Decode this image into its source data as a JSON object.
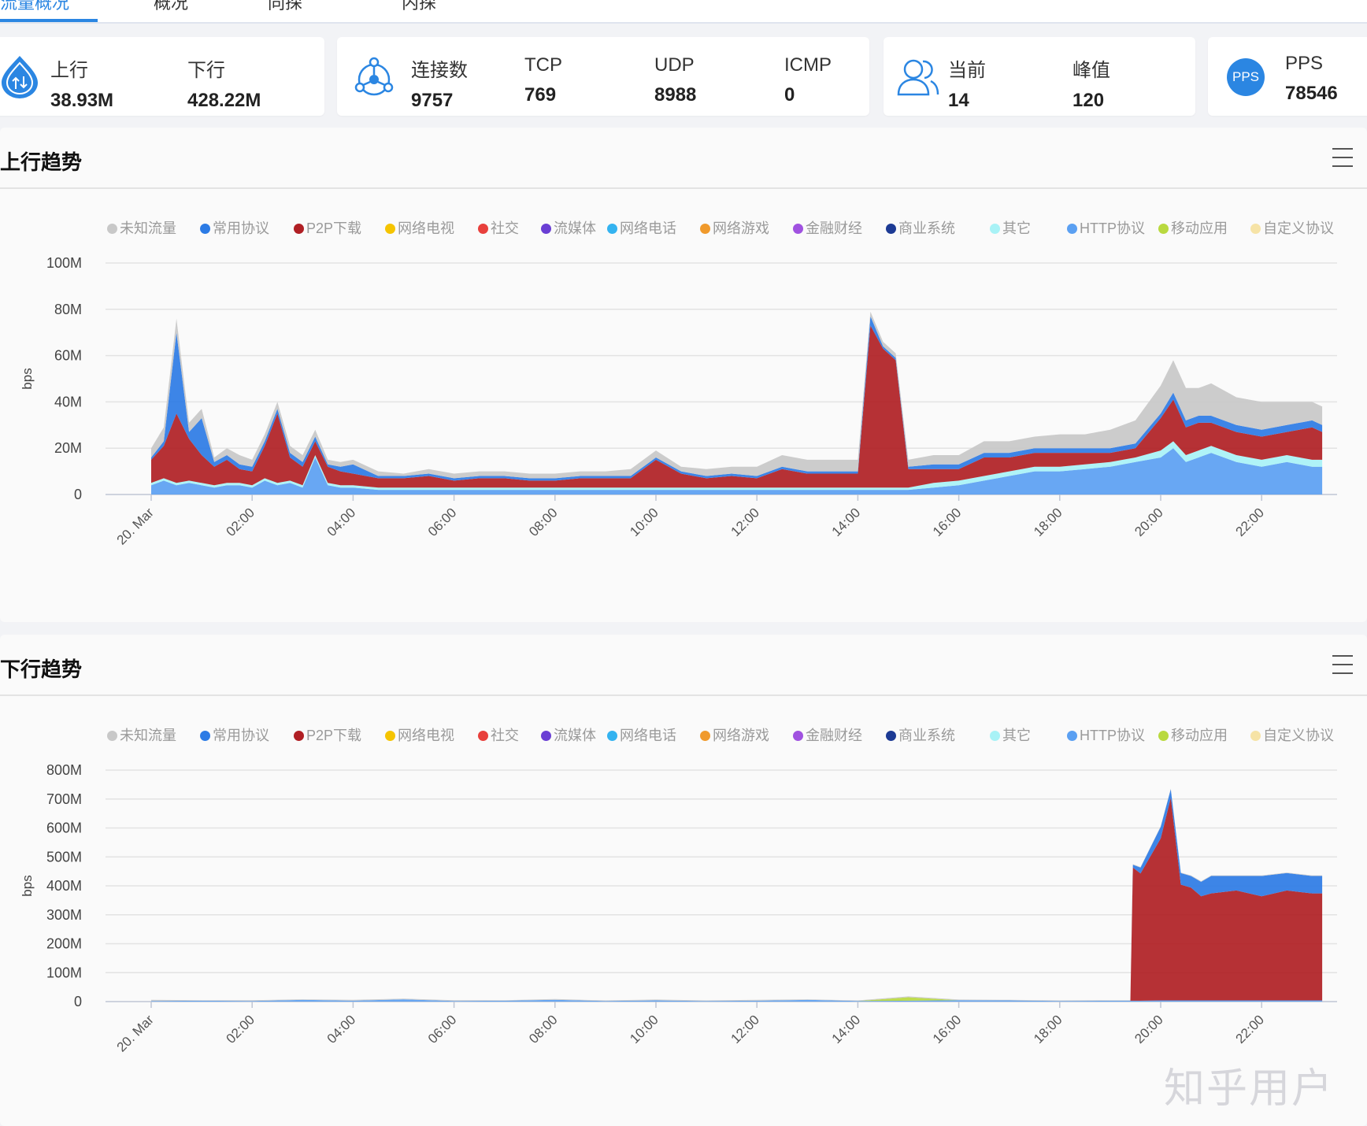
{
  "tabs": [
    {
      "label": "流量概况",
      "active": true
    },
    {
      "label": "概况",
      "active": false
    },
    {
      "label": "同探",
      "active": false
    },
    {
      "label": "内探",
      "active": false
    }
  ],
  "summary": {
    "updown": {
      "icon": "upload-download-icon",
      "up_label": "上行",
      "up_value": "38.93M",
      "down_label": "下行",
      "down_value": "428.22M"
    },
    "connections": {
      "icon": "network-nodes-icon",
      "total_label": "连接数",
      "total_value": "9757",
      "tcp_label": "TCP",
      "tcp_value": "769",
      "udp_label": "UDP",
      "udp_value": "8988",
      "icmp_label": "ICMP",
      "icmp_value": "0"
    },
    "users": {
      "icon": "users-icon",
      "current_label": "当前",
      "current_value": "14",
      "peak_label": "峰值",
      "peak_value": "120"
    },
    "pps": {
      "icon_text": "PPS",
      "label": "PPS",
      "value": "78546"
    }
  },
  "legend": [
    {
      "name": "未知流量",
      "color": "#c8c8c8"
    },
    {
      "name": "常用协议",
      "color": "#2c7be5"
    },
    {
      "name": "P2P下载",
      "color": "#b01f24"
    },
    {
      "name": "网络电视",
      "color": "#f5c400"
    },
    {
      "name": "社交",
      "color": "#e8403c"
    },
    {
      "name": "流媒体",
      "color": "#6a3fd4"
    },
    {
      "name": "网络电话",
      "color": "#34b3f0"
    },
    {
      "name": "网络游戏",
      "color": "#f09a2c"
    },
    {
      "name": "金融财经",
      "color": "#a052e0"
    },
    {
      "name": "商业系统",
      "color": "#1c3a94"
    },
    {
      "name": "其它",
      "color": "#a8f2f6"
    },
    {
      "name": "HTTP协议",
      "color": "#5ba0f2"
    },
    {
      "name": "移动应用",
      "color": "#b9d93f"
    },
    {
      "name": "自定义协议",
      "color": "#f6e3a6"
    }
  ],
  "watermark": "知乎用户",
  "chart_data": [
    {
      "type": "area",
      "title": "上行趋势",
      "ylabel": "bps",
      "yticks": [
        "0",
        "20M",
        "40M",
        "60M",
        "80M",
        "100M"
      ],
      "ylim": [
        0,
        100
      ],
      "unit": "M",
      "xticks": [
        "20. Mar",
        "02:00",
        "04:00",
        "06:00",
        "08:00",
        "10:00",
        "12:00",
        "14:00",
        "16:00",
        "18:00",
        "20:00",
        "22:00"
      ],
      "x_hours": [
        0,
        0.25,
        0.5,
        0.75,
        1,
        1.25,
        1.5,
        1.75,
        2,
        2.25,
        2.5,
        2.75,
        3,
        3.25,
        3.5,
        3.75,
        4,
        4.5,
        5,
        5.5,
        6,
        6.5,
        7,
        7.5,
        8,
        8.5,
        9,
        9.5,
        10,
        10.5,
        11,
        11.5,
        12,
        12.5,
        13,
        13.5,
        14,
        14.25,
        14.5,
        14.75,
        15,
        15.5,
        16,
        16.5,
        17,
        17.5,
        18,
        18.5,
        19,
        19.5,
        20,
        20.25,
        20.5,
        20.75,
        21,
        21.5,
        22,
        22.5,
        23,
        23.2
      ],
      "series": [
        {
          "name": "HTTP协议",
          "values": [
            4,
            6,
            4,
            5,
            4,
            3,
            4,
            4,
            3,
            6,
            4,
            5,
            3,
            16,
            4,
            3,
            3,
            2,
            2,
            2,
            2,
            2,
            2,
            2,
            2,
            2,
            2,
            2,
            2,
            2,
            2,
            2,
            2,
            2,
            2,
            2,
            2,
            2,
            2,
            2,
            2,
            3,
            4,
            6,
            8,
            10,
            10,
            11,
            12,
            14,
            16,
            20,
            14,
            16,
            18,
            14,
            12,
            14,
            12,
            12
          ]
        },
        {
          "name": "其它",
          "values": [
            1,
            1,
            1,
            1,
            1,
            1,
            1,
            1,
            1,
            1,
            1,
            1,
            1,
            1,
            1,
            1,
            1,
            1,
            1,
            1,
            1,
            1,
            1,
            1,
            1,
            1,
            1,
            1,
            1,
            1,
            1,
            1,
            1,
            1,
            1,
            1,
            1,
            1,
            1,
            1,
            1,
            2,
            2,
            2,
            2,
            2,
            2,
            2,
            2,
            2,
            3,
            3,
            3,
            3,
            3,
            3,
            3,
            3,
            3,
            3
          ]
        },
        {
          "name": "P2P下载",
          "values": [
            10,
            14,
            30,
            18,
            12,
            8,
            10,
            6,
            6,
            14,
            30,
            10,
            8,
            6,
            7,
            6,
            5,
            4,
            4,
            5,
            3,
            4,
            4,
            3,
            3,
            4,
            4,
            4,
            12,
            6,
            4,
            5,
            4,
            8,
            6,
            6,
            6,
            70,
            60,
            55,
            8,
            6,
            5,
            8,
            6,
            6,
            6,
            5,
            4,
            4,
            14,
            18,
            12,
            12,
            10,
            10,
            10,
            10,
            14,
            12
          ]
        },
        {
          "name": "常用协议",
          "values": [
            1,
            2,
            35,
            3,
            16,
            2,
            2,
            2,
            2,
            2,
            2,
            2,
            2,
            2,
            1,
            2,
            4,
            1,
            1,
            1,
            1,
            1,
            1,
            1,
            1,
            1,
            1,
            1,
            1,
            1,
            1,
            1,
            1,
            1,
            1,
            1,
            1,
            4,
            1,
            1,
            1,
            2,
            2,
            2,
            2,
            2,
            2,
            2,
            2,
            2,
            2,
            3,
            3,
            3,
            3,
            3,
            3,
            3,
            3,
            3
          ]
        },
        {
          "name": "未知流量",
          "values": [
            4,
            6,
            6,
            4,
            4,
            2,
            3,
            4,
            3,
            3,
            3,
            3,
            3,
            3,
            2,
            2,
            2,
            2,
            1,
            2,
            2,
            2,
            2,
            2,
            2,
            2,
            2,
            3,
            3,
            2,
            3,
            3,
            4,
            5,
            5,
            5,
            5,
            2,
            2,
            2,
            3,
            4,
            4,
            5,
            5,
            5,
            6,
            6,
            8,
            10,
            12,
            14,
            14,
            12,
            14,
            12,
            12,
            10,
            8,
            8
          ]
        }
      ]
    },
    {
      "type": "area",
      "title": "下行趋势",
      "ylabel": "bps",
      "yticks": [
        "0",
        "100M",
        "200M",
        "300M",
        "400M",
        "500M",
        "600M",
        "700M",
        "800M"
      ],
      "ylim": [
        0,
        800
      ],
      "unit": "M",
      "xticks": [
        "20. Mar",
        "02:00",
        "04:00",
        "06:00",
        "08:00",
        "10:00",
        "12:00",
        "14:00",
        "16:00",
        "18:00",
        "20:00",
        "22:00"
      ],
      "x_hours": [
        0,
        1,
        2,
        3,
        4,
        5,
        6,
        7,
        8,
        9,
        10,
        11,
        12,
        13,
        14,
        15,
        16,
        17,
        18,
        19,
        19.4,
        19.45,
        19.6,
        20,
        20.2,
        20.4,
        20.6,
        20.8,
        21,
        21.5,
        22,
        22.5,
        23,
        23.2
      ],
      "series": [
        {
          "name": "HTTP协议",
          "values": [
            2,
            3,
            2,
            6,
            3,
            8,
            2,
            3,
            6,
            2,
            4,
            2,
            3,
            6,
            2,
            3,
            5,
            4,
            2,
            3,
            3,
            3,
            3,
            4,
            4,
            4,
            4,
            4,
            4,
            4,
            4,
            4,
            4,
            4
          ]
        },
        {
          "name": "移动应用",
          "values": [
            0,
            0,
            0,
            0,
            0,
            0,
            0,
            0,
            0,
            0,
            0,
            0,
            0,
            0,
            0,
            12,
            0,
            0,
            0,
            0,
            0,
            0,
            0,
            0,
            0,
            0,
            0,
            0,
            0,
            0,
            0,
            0,
            0,
            0
          ]
        },
        {
          "name": "P2P下载",
          "values": [
            0,
            0,
            0,
            0,
            0,
            0,
            0,
            0,
            0,
            0,
            0,
            0,
            0,
            0,
            0,
            0,
            0,
            0,
            0,
            0,
            0,
            460,
            440,
            560,
            700,
            400,
            390,
            360,
            370,
            380,
            360,
            380,
            370,
            370
          ]
        },
        {
          "name": "常用协议",
          "values": [
            0,
            0,
            0,
            0,
            0,
            0,
            0,
            0,
            0,
            0,
            0,
            0,
            0,
            0,
            0,
            0,
            0,
            0,
            0,
            0,
            0,
            10,
            20,
            40,
            30,
            40,
            40,
            50,
            60,
            50,
            70,
            60,
            60,
            60
          ]
        },
        {
          "name": "未知流量",
          "values": [
            4,
            2,
            3,
            2,
            3,
            2,
            3,
            2,
            3,
            2,
            3,
            2,
            3,
            2,
            2,
            3,
            2,
            2,
            2,
            2,
            2,
            2,
            2,
            2,
            2,
            2,
            2,
            2,
            2,
            2,
            2,
            2,
            2,
            2
          ]
        }
      ]
    }
  ]
}
